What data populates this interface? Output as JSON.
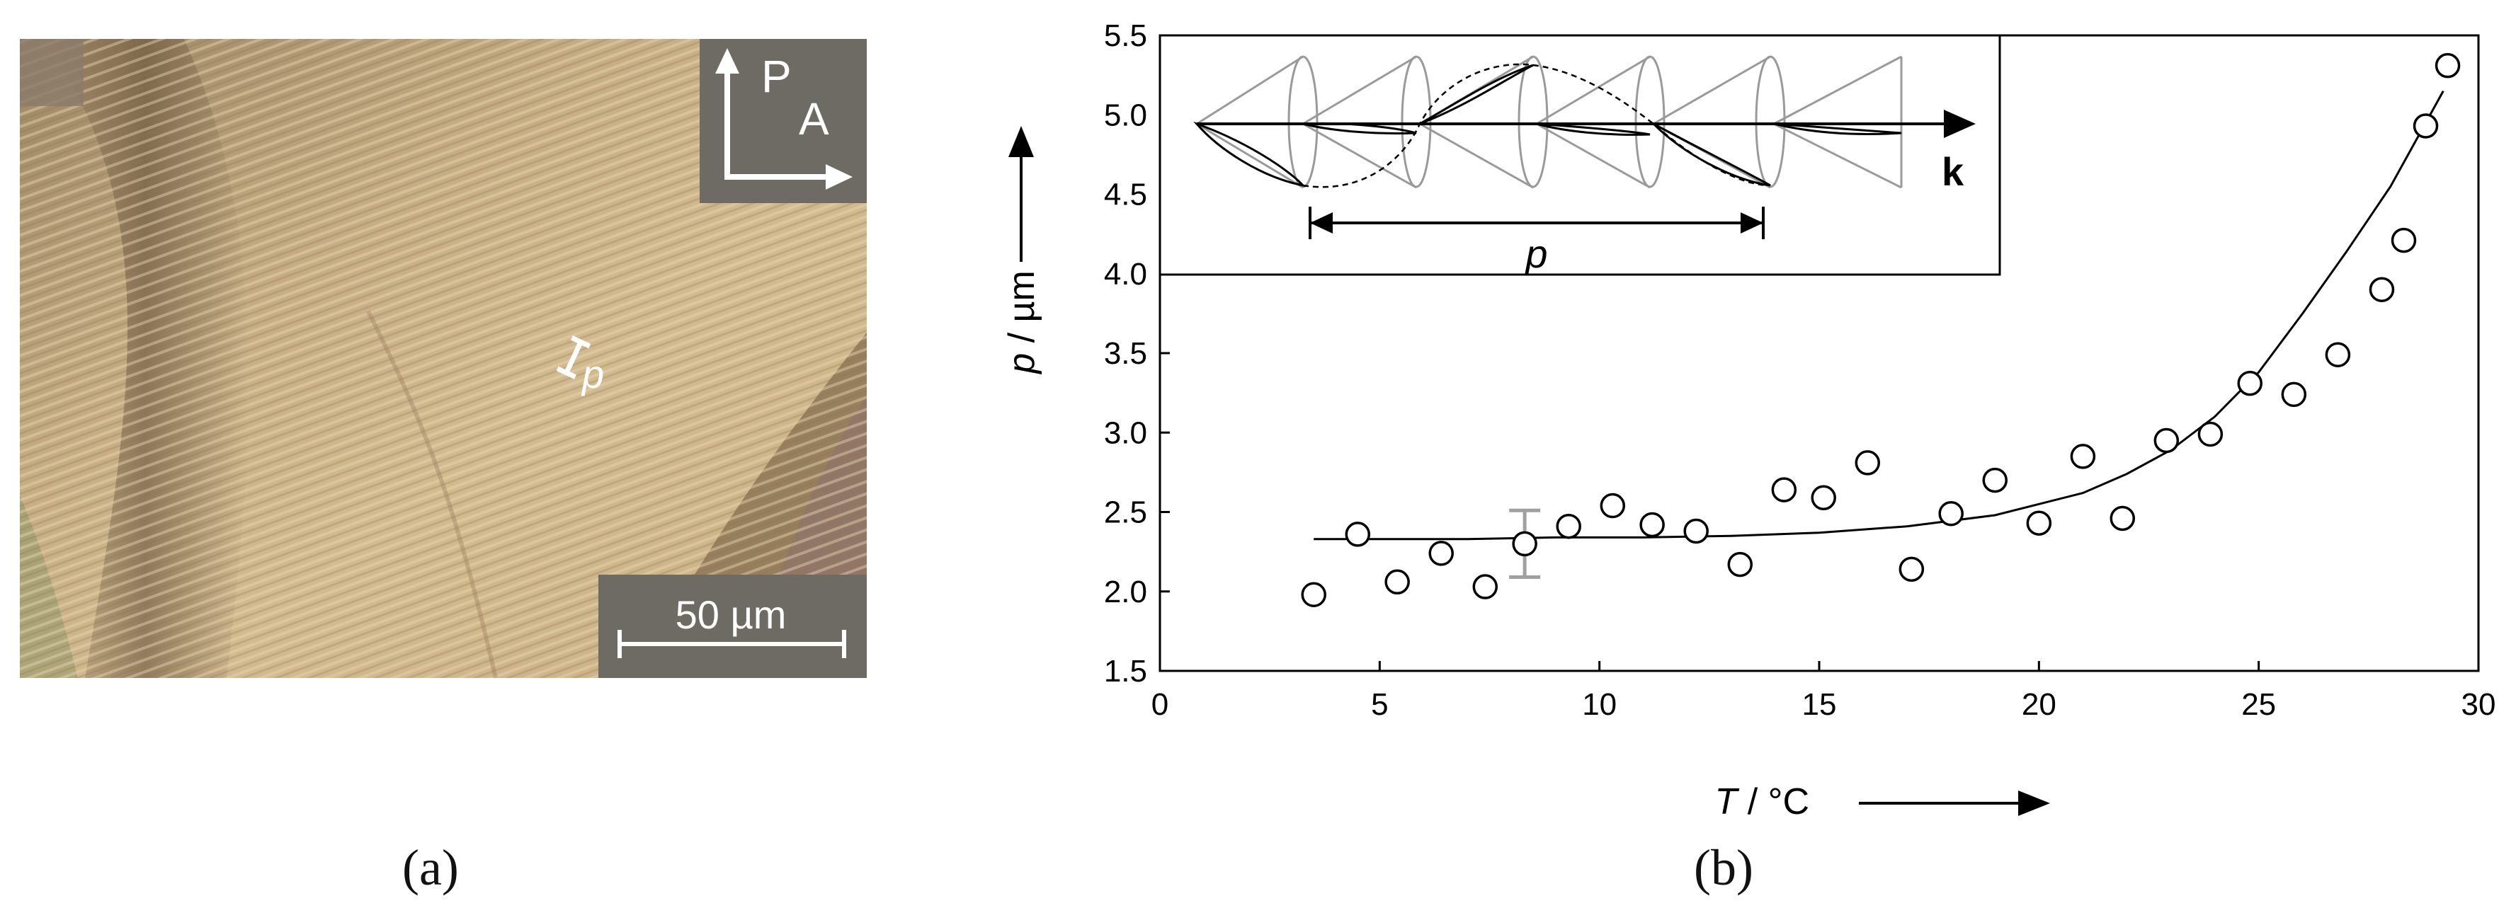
{
  "panel_a": {
    "label": "(a)",
    "scale_bar_label": "50 µm",
    "polarizer_label": "P",
    "analyzer_label": "A",
    "pitch_marker_label": "p"
  },
  "panel_b": {
    "label": "(b)",
    "inset": {
      "pitch_label": "p",
      "wavevector_label": "k"
    }
  },
  "chart_data": {
    "type": "scatter",
    "xlabel_symbol": "T",
    "xlabel_unit": "/ °C",
    "ylabel_symbol": "p",
    "ylabel_unit": "/ µm",
    "xlim": [
      0,
      30
    ],
    "ylim": [
      1.5,
      5.5
    ],
    "x_ticks": [
      "0",
      "5",
      "10",
      "15",
      "20",
      "25",
      "30"
    ],
    "y_ticks": [
      "1.5",
      "2.0",
      "2.5",
      "3.0",
      "3.5",
      "4.0",
      "4.5",
      "5.0",
      "5.5"
    ],
    "grid": false,
    "legend": "none",
    "series": [
      {
        "marker": "open-circle",
        "x": [
          3.5,
          4.5,
          5.4,
          6.4,
          7.4,
          8.3,
          9.3,
          10.3,
          11.2,
          12.2,
          13.2,
          14.2,
          15.1,
          16.1,
          17.1,
          18.0,
          19.0,
          20.0,
          21.0,
          21.9,
          22.9,
          23.9,
          24.8,
          25.8,
          26.8,
          27.8,
          28.3,
          28.8,
          29.3
        ],
        "y": [
          1.98,
          2.36,
          2.06,
          2.24,
          2.03,
          2.3,
          2.41,
          2.54,
          2.42,
          2.38,
          2.17,
          2.64,
          2.59,
          2.81,
          2.14,
          2.49,
          2.7,
          2.43,
          2.85,
          2.46,
          2.95,
          2.99,
          3.31,
          3.24,
          3.49,
          3.9,
          4.21,
          4.93,
          5.31
        ]
      }
    ],
    "fit_curve": {
      "x": [
        3.5,
        5,
        7,
        9,
        11,
        13,
        15,
        17,
        19,
        21,
        22,
        23,
        24,
        25,
        26,
        27,
        28,
        29.2
      ],
      "y": [
        2.33,
        2.33,
        2.33,
        2.34,
        2.34,
        2.35,
        2.37,
        2.41,
        2.48,
        2.62,
        2.74,
        2.89,
        3.1,
        3.38,
        3.75,
        4.14,
        4.55,
        5.15
      ]
    },
    "error_bar": {
      "x": 8.3,
      "y_low": 2.09,
      "y_high": 2.51,
      "color": "#a0a0a0"
    }
  }
}
